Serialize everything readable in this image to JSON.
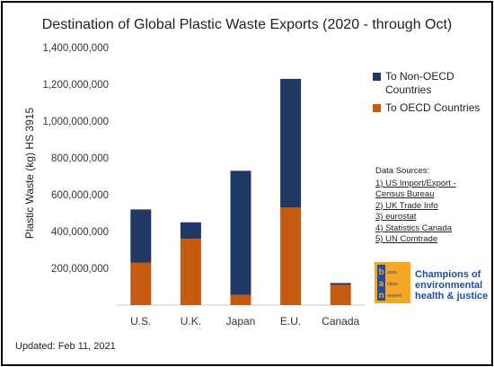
{
  "chart_data": {
    "type": "bar",
    "stacked": true,
    "title": "Destination of Global Plastic Waste Exports (2020 - through Oct)",
    "ylabel": "Plastic Waste (kg) HS 3915",
    "xlabel": "",
    "categories": [
      "U.S.",
      "U.K.",
      "Japan",
      "E.U.",
      "Canada"
    ],
    "series": [
      {
        "name": "To OECD Countries",
        "color": "#c55a11",
        "values": [
          230000000,
          360000000,
          55000000,
          530000000,
          110000000
        ]
      },
      {
        "name": "To Non-OECD Countries",
        "color": "#203864",
        "values": [
          290000000,
          90000000,
          675000000,
          700000000,
          10000000
        ]
      }
    ],
    "ylim": [
      0,
      1400000000
    ],
    "yticks": [
      0,
      200000000,
      400000000,
      600000000,
      800000000,
      1000000000,
      1200000000,
      1400000000
    ],
    "ytick_labels": [
      "",
      "200,000,000",
      "400,000,000",
      "600,000,000",
      "800,000,000",
      "1,000,000,000",
      "1,200,000,000",
      "1,400,000,000"
    ],
    "grid": false,
    "legend_position": "right"
  },
  "legend": {
    "non_oecd_line1": "To Non-OECD",
    "non_oecd_line2": "Countries",
    "oecd": "To OECD Countries"
  },
  "sources": {
    "header": "Data Sources:",
    "items": [
      "1) US Import/Export -",
      "Census Bureau",
      "2) UK Trade Info",
      "3) eurostat",
      "4) Statistics Canada",
      "5) UN Comtrade"
    ]
  },
  "logo": {
    "letters": [
      "b",
      "a",
      "n"
    ],
    "words": [
      "asel",
      "ction",
      "etwork"
    ],
    "tagline_1": "Champions of",
    "tagline_2": "environmental",
    "tagline_3": "health & justice"
  },
  "updated": "Updated: Feb 11, 2021"
}
